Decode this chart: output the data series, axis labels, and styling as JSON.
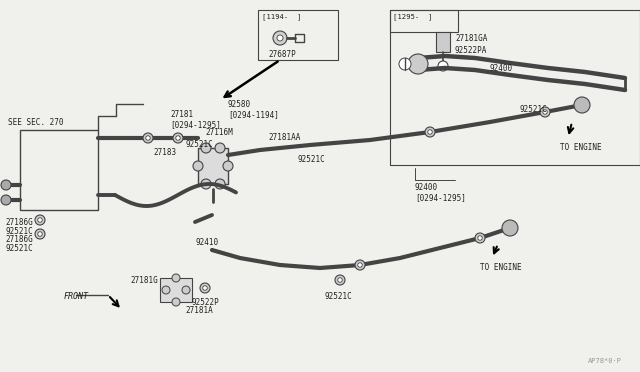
{
  "bg_color": "#f0f0ec",
  "line_color": "#444444",
  "text_color": "#222222",
  "dim": [
    640,
    372
  ],
  "labels": {
    "see_sec": "SEE SEC. 270",
    "front": "FRONT",
    "to_engine_r": "TO ENGINE",
    "to_engine_b": "TO ENGINE",
    "p27181": "27181\n[0294-1295]",
    "p92580": "92580\n[0294-1194]",
    "p27116M": "27116M",
    "p92521C_v": "92521C",
    "p27183": "27183",
    "p27181AA": "27181AA",
    "p92521C_m": "92521C",
    "p27186G1": "27186G",
    "p92521C_l1": "92521C",
    "p27186G2": "27186G",
    "p92521C_l2": "92521C",
    "p92410": "92410",
    "p92522P": "92522P",
    "p27181G": "27181G",
    "p27181A": "27181A",
    "p92400t": "92400",
    "p92400b": "92400\n[0294-1295]",
    "p92521C_r": "92521C",
    "p27181GA": "27181GA",
    "p92522PA": "92522PA",
    "inset1_hdr": "[1194-  ]",
    "inset1_pt": "27687P",
    "inset2_hdr": "[1295-  ]",
    "watermark": "AP78*0·P"
  }
}
